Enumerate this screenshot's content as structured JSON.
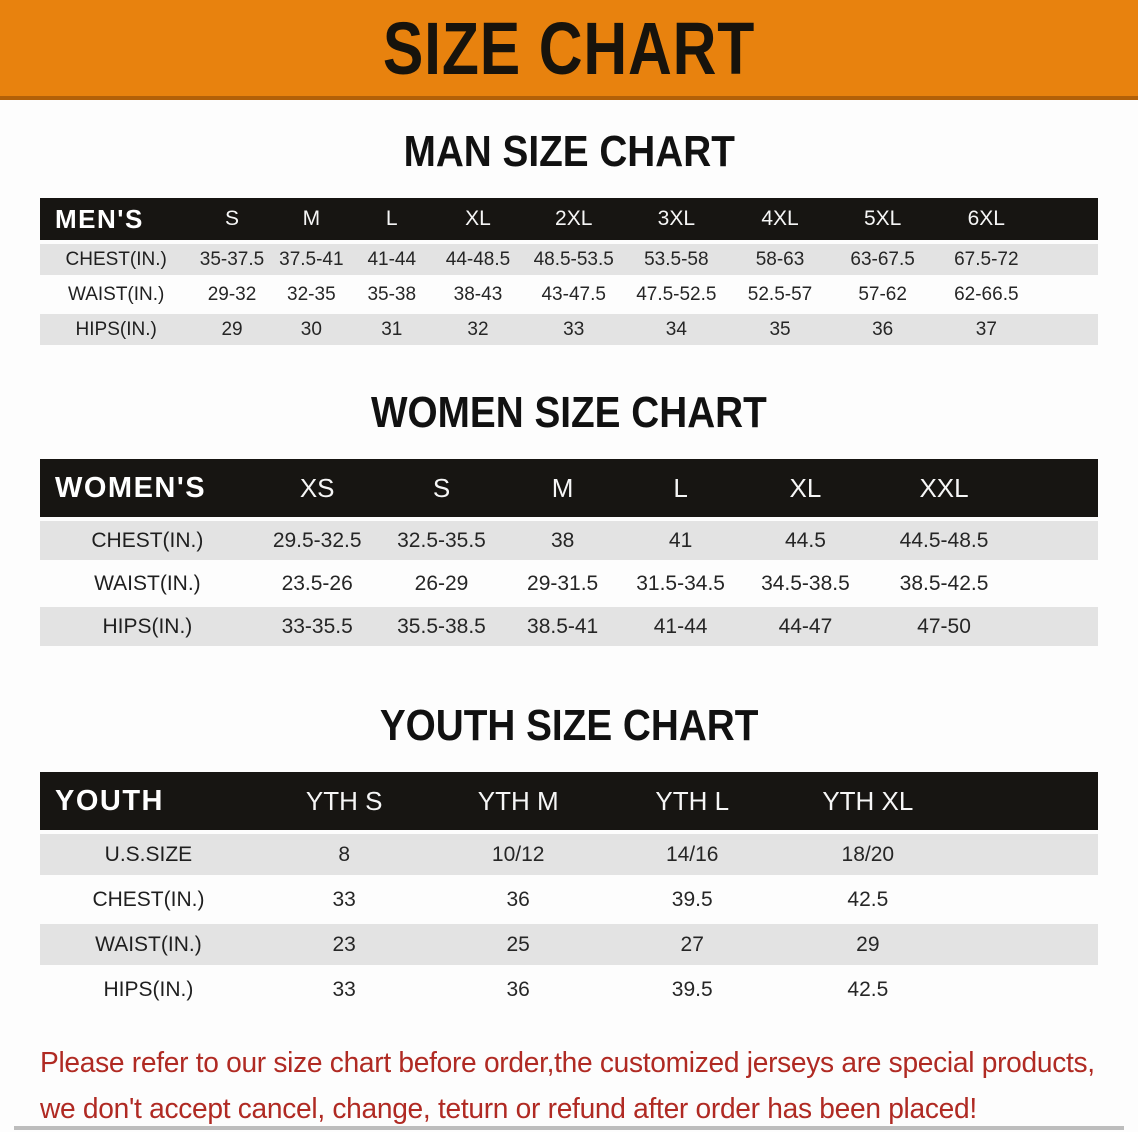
{
  "banner": {
    "title": "SIZE CHART"
  },
  "tables": {
    "men": {
      "heading": "MAN SIZE CHART",
      "corner_label": "MEN'S",
      "sizes": [
        "S",
        "M",
        "L",
        "XL",
        "2XL",
        "3XL",
        "4XL",
        "5XL",
        "6XL"
      ],
      "rows": [
        {
          "label": "CHEST(IN.)",
          "values": [
            "35-37.5",
            "37.5-41",
            "41-44",
            "44-48.5",
            "48.5-53.5",
            "53.5-58",
            "58-63",
            "63-67.5",
            "67.5-72"
          ]
        },
        {
          "label": "WAIST(IN.)",
          "values": [
            "29-32",
            "32-35",
            "35-38",
            "38-43",
            "43-47.5",
            "47.5-52.5",
            "52.5-57",
            "57-62",
            "62-66.5"
          ]
        },
        {
          "label": "HIPS(IN.)",
          "values": [
            "29",
            "30",
            "31",
            "32",
            "33",
            "34",
            "35",
            "36",
            "37"
          ]
        }
      ]
    },
    "women": {
      "heading": "WOMEN SIZE CHART",
      "corner_label": "WOMEN'S",
      "sizes": [
        "XS",
        "S",
        "M",
        "L",
        "XL",
        "XXL"
      ],
      "rows": [
        {
          "label": "CHEST(IN.)",
          "values": [
            "29.5-32.5",
            "32.5-35.5",
            "38",
            "41",
            "44.5",
            "44.5-48.5"
          ]
        },
        {
          "label": "WAIST(IN.)",
          "values": [
            "23.5-26",
            "26-29",
            "29-31.5",
            "31.5-34.5",
            "34.5-38.5",
            "38.5-42.5"
          ]
        },
        {
          "label": "HIPS(IN.)",
          "values": [
            "33-35.5",
            "35.5-38.5",
            "38.5-41",
            "41-44",
            "44-47",
            "47-50"
          ]
        }
      ]
    },
    "youth": {
      "heading": "YOUTH SIZE CHART",
      "corner_label": "YOUTH",
      "sizes": [
        "YTH S",
        "YTH M",
        "YTH L",
        "YTH XL"
      ],
      "rows": [
        {
          "label": "U.S.SIZE",
          "values": [
            "8",
            "10/12",
            "14/16",
            "18/20"
          ]
        },
        {
          "label": "CHEST(IN.)",
          "values": [
            "33",
            "36",
            "39.5",
            "42.5"
          ]
        },
        {
          "label": "WAIST(IN.)",
          "values": [
            "23",
            "25",
            "27",
            "29"
          ]
        },
        {
          "label": "HIPS(IN.)",
          "values": [
            "33",
            "36",
            "39.5",
            "42.5"
          ]
        }
      ]
    }
  },
  "footer": {
    "line1": "Please refer to our size chart before order,the customized jerseys are special products,",
    "line2": "we don't accept cancel, change, teturn or refund after order has been placed!"
  },
  "colors": {
    "banner_bg": "#e8820e",
    "banner_edge": "#b26008",
    "table_header_bg": "#171512",
    "row_alt_gray": "#e3e3e3",
    "note_red": "#b02a23"
  }
}
